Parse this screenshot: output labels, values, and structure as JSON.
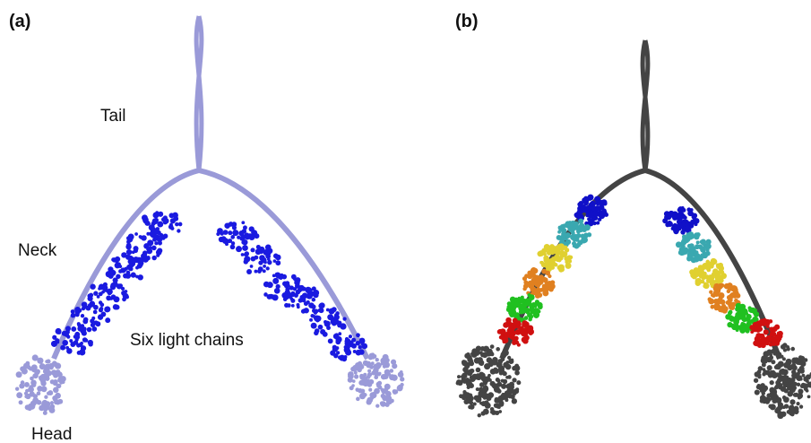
{
  "panel_a": {
    "tag": "(a)",
    "labels": {
      "tail": "Tail",
      "neck": "Neck",
      "light_chains": "Six light chains",
      "head": "Head"
    }
  },
  "panel_b": {
    "tag": "(b)"
  }
}
